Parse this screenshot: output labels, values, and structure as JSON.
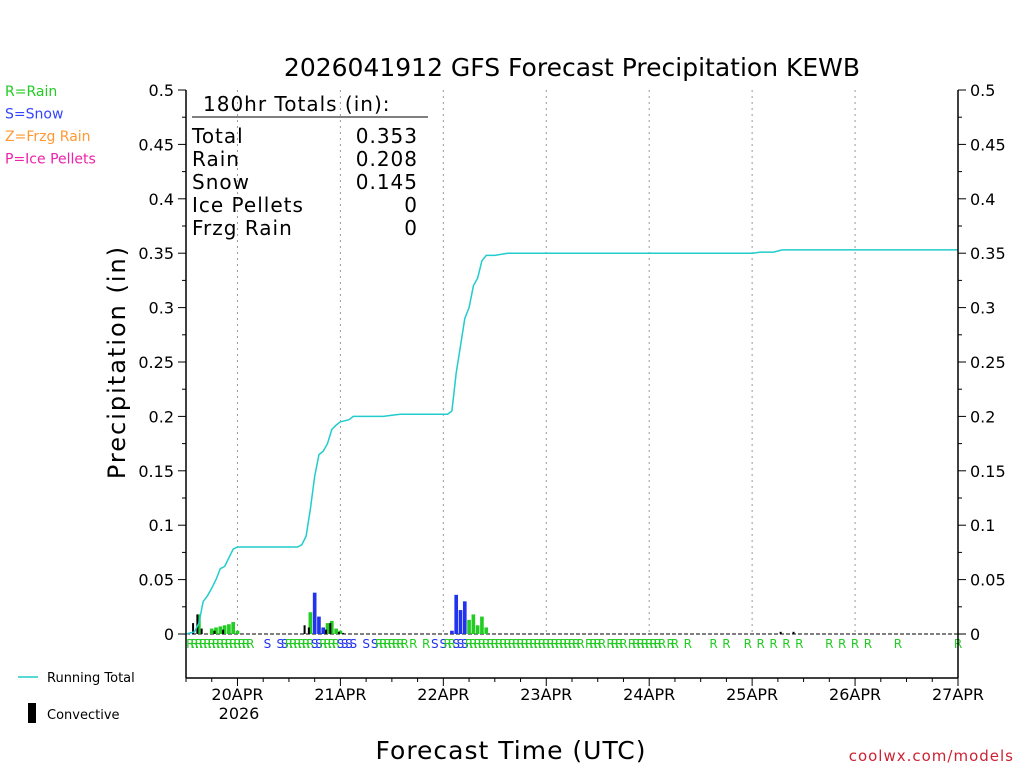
{
  "chart_data": {
    "type": "line",
    "title": "2026041912 GFS Forecast Precipitation KEWB",
    "xlabel": "Forecast Time (UTC)",
    "ylabel": "Precipitation (in)",
    "ylim": [
      0,
      0.5
    ],
    "xlim_hours": [
      0,
      180
    ],
    "y_ticks": [
      "0",
      "0.05",
      "0.1",
      "0.15",
      "0.2",
      "0.25",
      "0.3",
      "0.35",
      "0.4",
      "0.45",
      "0.5"
    ],
    "x_ticks": [
      {
        "label": "20APR",
        "hour": 12
      },
      {
        "label": "21APR",
        "hour": 36
      },
      {
        "label": "22APR",
        "hour": 60
      },
      {
        "label": "23APR",
        "hour": 84
      },
      {
        "label": "24APR",
        "hour": 108
      },
      {
        "label": "25APR",
        "hour": 132
      },
      {
        "label": "26APR",
        "hour": 156
      },
      {
        "label": "27APR",
        "hour": 180
      }
    ],
    "year_label": "2026",
    "precip_type_legend": [
      {
        "label": "R=Rain",
        "color": "#22cc22"
      },
      {
        "label": "S=Snow",
        "color": "#3344ff"
      },
      {
        "label": "Z=Frzg Rain",
        "color": "#ff9933"
      },
      {
        "label": "P=Ice Pellets",
        "color": "#ee22aa"
      }
    ],
    "series_legend": [
      {
        "label": "Running Total",
        "color": "#22cccc"
      },
      {
        "label": "Convective",
        "color": "#000000"
      }
    ],
    "totals": {
      "header": "180hr Totals (in):",
      "rows": [
        {
          "label": "Total",
          "value": "0.353"
        },
        {
          "label": "Rain",
          "value": "0.208"
        },
        {
          "label": "Snow",
          "value": "0.145"
        },
        {
          "label": "Ice Pellets",
          "value": "0"
        },
        {
          "label": "Frzg Rain",
          "value": "0"
        }
      ]
    },
    "running_total": [
      [
        0,
        0
      ],
      [
        2,
        0.002
      ],
      [
        3,
        0.01
      ],
      [
        4,
        0.03
      ],
      [
        5,
        0.035
      ],
      [
        6,
        0.042
      ],
      [
        7,
        0.05
      ],
      [
        8,
        0.06
      ],
      [
        9,
        0.062
      ],
      [
        10,
        0.07
      ],
      [
        11,
        0.078
      ],
      [
        12,
        0.08
      ],
      [
        17,
        0.08
      ],
      [
        26,
        0.08
      ],
      [
        27,
        0.082
      ],
      [
        28,
        0.09
      ],
      [
        29,
        0.115
      ],
      [
        30,
        0.145
      ],
      [
        31,
        0.165
      ],
      [
        32,
        0.168
      ],
      [
        33,
        0.175
      ],
      [
        34,
        0.188
      ],
      [
        35,
        0.192
      ],
      [
        36,
        0.195
      ],
      [
        37,
        0.196
      ],
      [
        38,
        0.197
      ],
      [
        39,
        0.2
      ],
      [
        46,
        0.2
      ],
      [
        48,
        0.201
      ],
      [
        50,
        0.202
      ],
      [
        56,
        0.202
      ],
      [
        61,
        0.202
      ],
      [
        62,
        0.205
      ],
      [
        63,
        0.24
      ],
      [
        64,
        0.265
      ],
      [
        65,
        0.29
      ],
      [
        66,
        0.3
      ],
      [
        67,
        0.32
      ],
      [
        68,
        0.327
      ],
      [
        69,
        0.343
      ],
      [
        70,
        0.348
      ],
      [
        72,
        0.348
      ],
      [
        75,
        0.35
      ],
      [
        120,
        0.35
      ],
      [
        132,
        0.35
      ],
      [
        134,
        0.351
      ],
      [
        137,
        0.351
      ],
      [
        138,
        0.352
      ],
      [
        139,
        0.353
      ],
      [
        145,
        0.353
      ],
      [
        180,
        0.353
      ]
    ],
    "precip_bars": [
      {
        "hour": 3,
        "value": 0.018,
        "type": "rain"
      },
      {
        "hour": 6,
        "value": 0.005,
        "type": "rain"
      },
      {
        "hour": 7,
        "value": 0.006,
        "type": "rain"
      },
      {
        "hour": 8,
        "value": 0.007,
        "type": "rain"
      },
      {
        "hour": 9,
        "value": 0.008,
        "type": "rain"
      },
      {
        "hour": 10,
        "value": 0.009,
        "type": "rain"
      },
      {
        "hour": 11,
        "value": 0.011,
        "type": "rain"
      },
      {
        "hour": 12,
        "value": 0.003,
        "type": "rain"
      },
      {
        "hour": 29,
        "value": 0.02,
        "type": "rain"
      },
      {
        "hour": 30,
        "value": 0.038,
        "type": "snow"
      },
      {
        "hour": 31,
        "value": 0.016,
        "type": "snow"
      },
      {
        "hour": 32,
        "value": 0.006,
        "type": "snow"
      },
      {
        "hour": 33,
        "value": 0.01,
        "type": "rain"
      },
      {
        "hour": 34,
        "value": 0.012,
        "type": "rain"
      },
      {
        "hour": 35,
        "value": 0.005,
        "type": "rain"
      },
      {
        "hour": 36,
        "value": 0.003,
        "type": "rain"
      },
      {
        "hour": 62,
        "value": 0.003,
        "type": "snow"
      },
      {
        "hour": 63,
        "value": 0.036,
        "type": "snow"
      },
      {
        "hour": 64,
        "value": 0.022,
        "type": "snow"
      },
      {
        "hour": 65,
        "value": 0.03,
        "type": "snow"
      },
      {
        "hour": 66,
        "value": 0.013,
        "type": "rain"
      },
      {
        "hour": 67,
        "value": 0.018,
        "type": "rain"
      },
      {
        "hour": 68,
        "value": 0.008,
        "type": "rain"
      },
      {
        "hour": 69,
        "value": 0.016,
        "type": "rain"
      },
      {
        "hour": 70,
        "value": 0.006,
        "type": "rain"
      }
    ],
    "convective_bars": [
      {
        "hour": 2,
        "value": 0.01
      },
      {
        "hour": 3,
        "value": 0.018
      },
      {
        "hour": 4,
        "value": 0.005
      },
      {
        "hour": 7,
        "value": 0.003
      },
      {
        "hour": 9,
        "value": 0.004
      },
      {
        "hour": 28,
        "value": 0.008
      },
      {
        "hour": 29,
        "value": 0.006
      },
      {
        "hour": 33,
        "value": 0.004
      },
      {
        "hour": 34,
        "value": 0.01
      },
      {
        "hour": 36,
        "value": 0.002
      },
      {
        "hour": 37,
        "value": 0.001
      },
      {
        "hour": 139,
        "value": 0.002
      },
      {
        "hour": 142,
        "value": 0.002
      }
    ],
    "type_markers": [
      {
        "hour": 1,
        "code": "R"
      },
      {
        "hour": 2,
        "code": "R"
      },
      {
        "hour": 3,
        "code": "R"
      },
      {
        "hour": 4,
        "code": "R"
      },
      {
        "hour": 5,
        "code": "R"
      },
      {
        "hour": 6,
        "code": "R"
      },
      {
        "hour": 7,
        "code": "R"
      },
      {
        "hour": 8,
        "code": "R"
      },
      {
        "hour": 9,
        "code": "R"
      },
      {
        "hour": 10,
        "code": "R"
      },
      {
        "hour": 11,
        "code": "R"
      },
      {
        "hour": 12,
        "code": "R"
      },
      {
        "hour": 13,
        "code": "R"
      },
      {
        "hour": 14,
        "code": "R"
      },
      {
        "hour": 15,
        "code": "R"
      },
      {
        "hour": 19,
        "code": "S"
      },
      {
        "hour": 22,
        "code": "S"
      },
      {
        "hour": 23,
        "code": "S"
      },
      {
        "hour": 24,
        "code": "R"
      },
      {
        "hour": 25,
        "code": "R"
      },
      {
        "hour": 26,
        "code": "R"
      },
      {
        "hour": 27,
        "code": "R"
      },
      {
        "hour": 28,
        "code": "R"
      },
      {
        "hour": 29,
        "code": "R"
      },
      {
        "hour": 30,
        "code": "S"
      },
      {
        "hour": 31,
        "code": "S"
      },
      {
        "hour": 32,
        "code": "R"
      },
      {
        "hour": 33,
        "code": "R"
      },
      {
        "hour": 34,
        "code": "R"
      },
      {
        "hour": 35,
        "code": "R"
      },
      {
        "hour": 36,
        "code": "S"
      },
      {
        "hour": 37,
        "code": "S"
      },
      {
        "hour": 38,
        "code": "S"
      },
      {
        "hour": 39,
        "code": "S"
      },
      {
        "hour": 42,
        "code": "S"
      },
      {
        "hour": 44,
        "code": "S"
      },
      {
        "hour": 45,
        "code": "R"
      },
      {
        "hour": 46,
        "code": "R"
      },
      {
        "hour": 47,
        "code": "R"
      },
      {
        "hour": 48,
        "code": "R"
      },
      {
        "hour": 49,
        "code": "R"
      },
      {
        "hour": 50,
        "code": "R"
      },
      {
        "hour": 51,
        "code": "R"
      },
      {
        "hour": 53,
        "code": "R"
      },
      {
        "hour": 56,
        "code": "R"
      },
      {
        "hour": 58,
        "code": "S"
      },
      {
        "hour": 60,
        "code": "S"
      },
      {
        "hour": 61,
        "code": "R"
      },
      {
        "hour": 62,
        "code": "R"
      },
      {
        "hour": 63,
        "code": "S"
      },
      {
        "hour": 64,
        "code": "S"
      },
      {
        "hour": 65,
        "code": "S"
      },
      {
        "hour": 66,
        "code": "R"
      },
      {
        "hour": 67,
        "code": "R"
      },
      {
        "hour": 68,
        "code": "R"
      },
      {
        "hour": 69,
        "code": "R"
      },
      {
        "hour": 70,
        "code": "R"
      },
      {
        "hour": 71,
        "code": "R"
      },
      {
        "hour": 72,
        "code": "R"
      },
      {
        "hour": 73,
        "code": "R"
      },
      {
        "hour": 74,
        "code": "R"
      },
      {
        "hour": 75,
        "code": "R"
      },
      {
        "hour": 76,
        "code": "R"
      },
      {
        "hour": 77,
        "code": "R"
      },
      {
        "hour": 78,
        "code": "R"
      },
      {
        "hour": 79,
        "code": "R"
      },
      {
        "hour": 80,
        "code": "R"
      },
      {
        "hour": 81,
        "code": "R"
      },
      {
        "hour": 82,
        "code": "R"
      },
      {
        "hour": 83,
        "code": "R"
      },
      {
        "hour": 84,
        "code": "R"
      },
      {
        "hour": 85,
        "code": "R"
      },
      {
        "hour": 86,
        "code": "R"
      },
      {
        "hour": 87,
        "code": "R"
      },
      {
        "hour": 88,
        "code": "R"
      },
      {
        "hour": 89,
        "code": "R"
      },
      {
        "hour": 90,
        "code": "R"
      },
      {
        "hour": 91,
        "code": "R"
      },
      {
        "hour": 92,
        "code": "R"
      },
      {
        "hour": 94,
        "code": "R"
      },
      {
        "hour": 95,
        "code": "R"
      },
      {
        "hour": 96,
        "code": "R"
      },
      {
        "hour": 97,
        "code": "R"
      },
      {
        "hour": 99,
        "code": "R"
      },
      {
        "hour": 100,
        "code": "R"
      },
      {
        "hour": 101,
        "code": "R"
      },
      {
        "hour": 102,
        "code": "R"
      },
      {
        "hour": 104,
        "code": "R"
      },
      {
        "hour": 105,
        "code": "R"
      },
      {
        "hour": 106,
        "code": "R"
      },
      {
        "hour": 107,
        "code": "R"
      },
      {
        "hour": 108,
        "code": "R"
      },
      {
        "hour": 109,
        "code": "R"
      },
      {
        "hour": 110,
        "code": "R"
      },
      {
        "hour": 111,
        "code": "R"
      },
      {
        "hour": 113,
        "code": "R"
      },
      {
        "hour": 114,
        "code": "R"
      },
      {
        "hour": 117,
        "code": "R"
      },
      {
        "hour": 123,
        "code": "R"
      },
      {
        "hour": 126,
        "code": "R"
      },
      {
        "hour": 131,
        "code": "R"
      },
      {
        "hour": 134,
        "code": "R"
      },
      {
        "hour": 137,
        "code": "R"
      },
      {
        "hour": 140,
        "code": "R"
      },
      {
        "hour": 143,
        "code": "R"
      },
      {
        "hour": 150,
        "code": "R"
      },
      {
        "hour": 153,
        "code": "R"
      },
      {
        "hour": 156,
        "code": "R"
      },
      {
        "hour": 159,
        "code": "R"
      },
      {
        "hour": 166,
        "code": "R"
      },
      {
        "hour": 180,
        "code": "R"
      }
    ],
    "watermark": "coolwx.com/models",
    "colors": {
      "rain": "#22cc22",
      "snow": "#2233ee",
      "running_total": "#22cccc",
      "convective": "#000000",
      "grid": "#999999",
      "watermark": "#cc2233"
    }
  }
}
